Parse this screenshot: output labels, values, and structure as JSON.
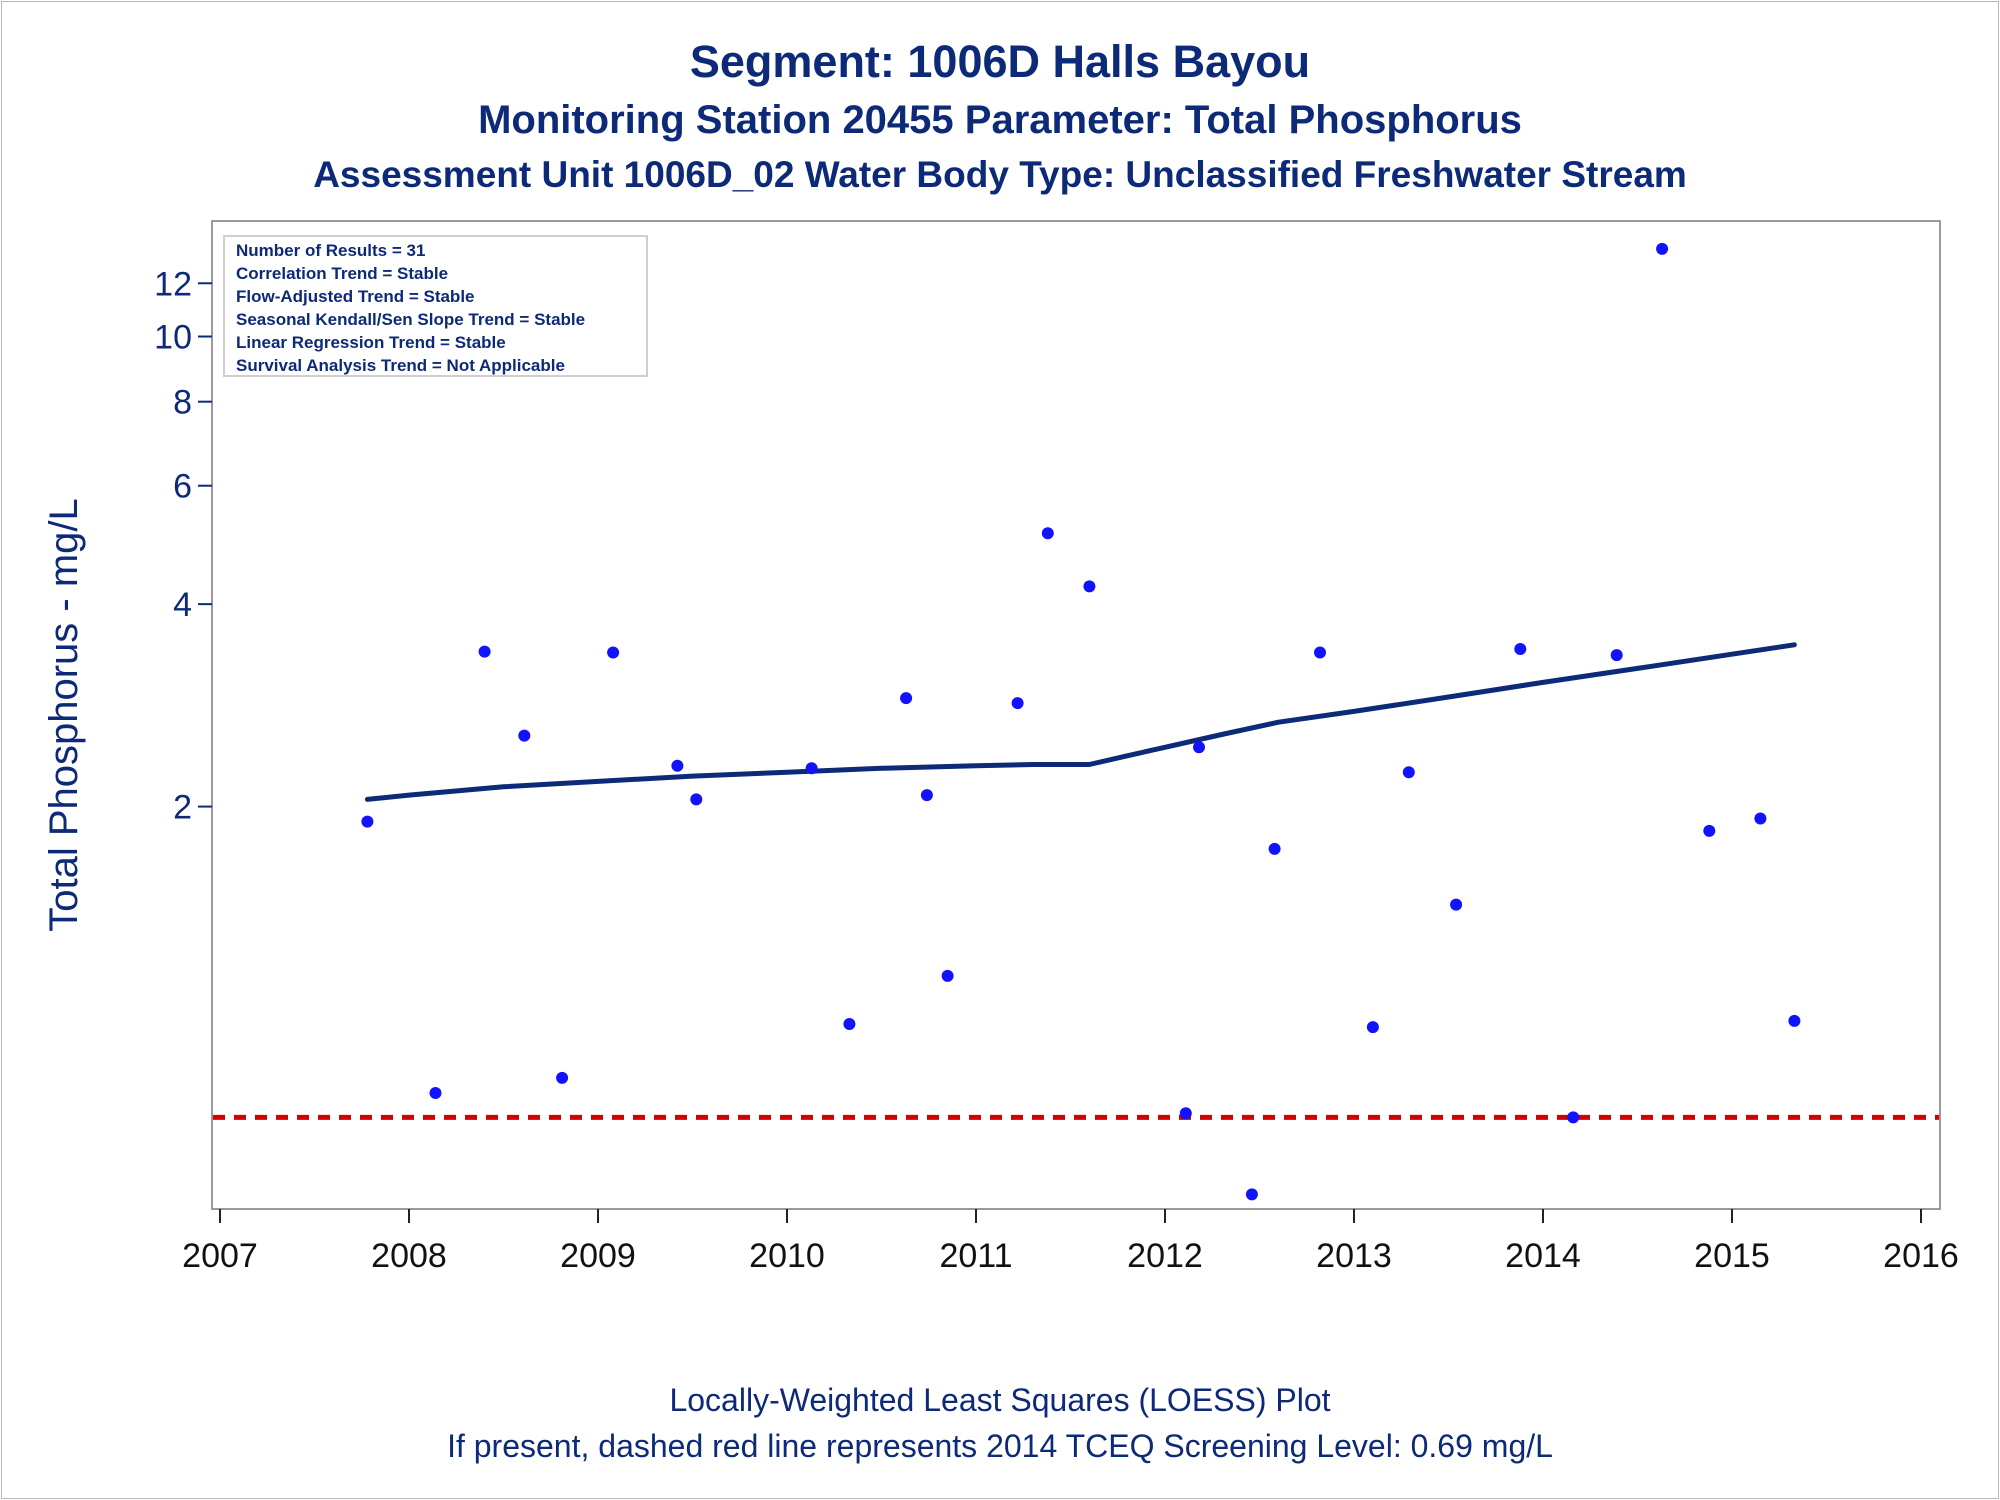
{
  "title": "Segment: 1006D  Halls Bayou",
  "subtitle1": "Monitoring Station 20455 Parameter: Total Phosphorus",
  "subtitle2": "Assessment Unit 1006D_02   Water Body Type: Unclassified Freshwater Stream",
  "footnote1": "Locally-Weighted Least Squares (LOESS) Plot",
  "footnote2": "If present, dashed red line represents 2014 TCEQ Screening Level: 0.69 mg/L",
  "stats_box": [
    "Number of Results = 31",
    "Correlation Trend = Stable",
    "Flow-Adjusted Trend = Stable",
    "Seasonal Kendall/Sen Slope Trend = Stable",
    "Linear Regression Trend = Stable",
    "Survival Analysis Trend = Not Applicable"
  ],
  "chart_data": {
    "type": "scatter",
    "ylabel": "Total Phosphorus - mg/L",
    "xlabel": "",
    "x_ticks": [
      "2007",
      "2008",
      "2009",
      "2010",
      "2011",
      "2012",
      "2013",
      "2014",
      "2015",
      "2016"
    ],
    "y_ticks": [
      2,
      4,
      6,
      8,
      10,
      12
    ],
    "xlim": [
      2007.0,
      2016.1
    ],
    "ylim": [
      0.52,
      14.5
    ],
    "y_scale": "log",
    "grid": false,
    "legend": "none",
    "colors": {
      "points": "#1212ff",
      "loess": "#0d2a78",
      "screening": "#d40000",
      "text": "#0d2a78"
    },
    "series": [
      {
        "type": "scatter",
        "x": [
          2007.78,
          2008.14,
          2008.4,
          2008.61,
          2008.81,
          2009.08,
          2009.42,
          2009.52,
          2010.13,
          2010.33,
          2010.63,
          2010.74,
          2010.85,
          2011.22,
          2011.38,
          2011.6,
          2012.11,
          2012.18,
          2012.46,
          2012.58,
          2012.82,
          2013.1,
          2013.29,
          2013.54,
          2013.88,
          2014.16,
          2014.39,
          2014.63,
          2014.88,
          2015.15,
          2015.33
        ],
        "y": [
          1.9,
          0.75,
          3.4,
          2.55,
          0.79,
          3.39,
          2.3,
          2.05,
          2.28,
          0.95,
          2.9,
          2.08,
          1.12,
          2.85,
          5.1,
          4.25,
          0.7,
          2.45,
          0.53,
          1.73,
          3.39,
          0.94,
          2.25,
          1.43,
          3.43,
          0.69,
          3.36,
          13.5,
          1.84,
          1.92,
          0.96
        ]
      },
      {
        "type": "line",
        "name": "",
        "x": [
          2007.78,
          2008.0,
          2008.5,
          2009.0,
          2009.5,
          2010.0,
          2010.5,
          2011.0,
          2011.3,
          2011.6,
          2011.8,
          2012.0,
          2012.3,
          2012.6,
          2013.0,
          2013.5,
          2014.0,
          2014.5,
          2015.0,
          2015.33
        ],
        "y": [
          2.05,
          2.08,
          2.14,
          2.18,
          2.22,
          2.25,
          2.28,
          2.3,
          2.31,
          2.31,
          2.38,
          2.45,
          2.56,
          2.67,
          2.77,
          2.91,
          3.06,
          3.21,
          3.37,
          3.48
        ]
      }
    ],
    "reference_line": {
      "y": 0.69,
      "style": "dashed"
    }
  }
}
